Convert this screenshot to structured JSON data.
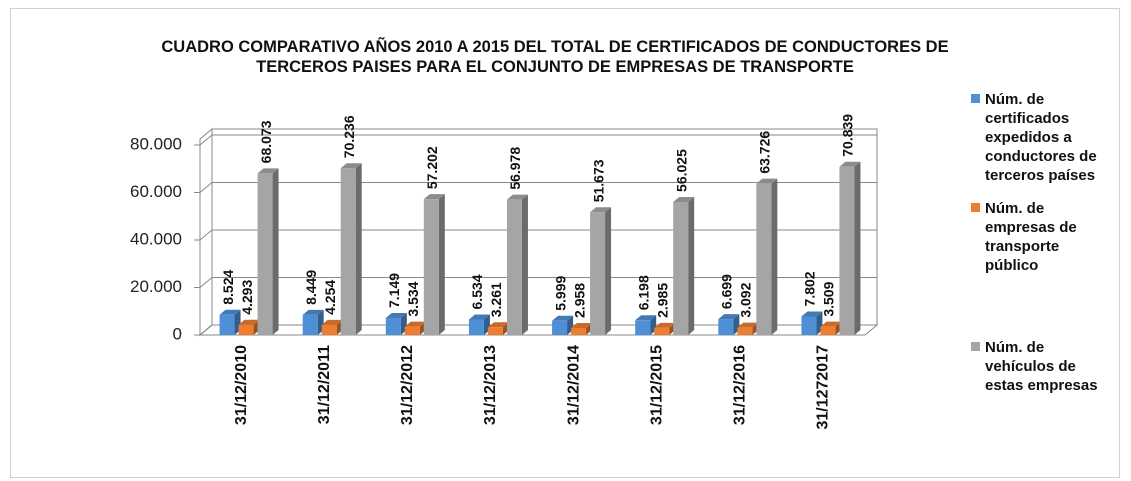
{
  "chart_data": {
    "type": "bar3d",
    "title": "CUADRO COMPARATIVO AÑOS 2010 A 2015 DEL TOTAL DE CERTIFICADOS DE CONDUCTORES DE TERCEROS PAISES PARA EL CONJUNTO DE EMPRESAS DE TRANSPORTE",
    "categories": [
      "31/12/2010",
      "31/12/2011",
      "31/12/2012",
      "31/12/2013",
      "31/12/2014",
      "31/12/2015",
      "31/12/2016",
      "31/1272017"
    ],
    "series": [
      {
        "name": "Núm. de certificados expedidos a conductores de terceros países",
        "color": "#4f8fd6",
        "values": [
          8524,
          8449,
          7149,
          6534,
          5999,
          6198,
          6699,
          7802
        ],
        "value_labels": [
          "8.524",
          "8.449",
          "7.149",
          "6.534",
          "5.999",
          "6.198",
          "6.699",
          "7.802"
        ]
      },
      {
        "name": "Núm. de empresas de transporte público",
        "color": "#ed7d31",
        "values": [
          4293,
          4254,
          3534,
          3261,
          2958,
          2985,
          3092,
          3509
        ],
        "value_labels": [
          "4.293",
          "4.254",
          "3.534",
          "3.261",
          "2.958",
          "2.985",
          "3.092",
          "3.509"
        ]
      },
      {
        "name": "Núm. de vehículos de estas empresas",
        "color": "#a5a5a5",
        "values": [
          68073,
          70236,
          57202,
          56978,
          51673,
          56025,
          63726,
          70839
        ],
        "value_labels": [
          "68.073",
          "70.236",
          "57.202",
          "56.978",
          "51.673",
          "56.025",
          "63.726",
          "70.839"
        ]
      }
    ],
    "ylim": [
      0,
      80000
    ],
    "yticks": [
      0,
      {
        "value": 20000,
        "label": "20.000"
      },
      {
        "value": 40000,
        "label": "40.000"
      },
      {
        "value": 60000,
        "label": "60.000"
      },
      {
        "value": 80000,
        "label": "80.000"
      }
    ],
    "grid": true
  }
}
